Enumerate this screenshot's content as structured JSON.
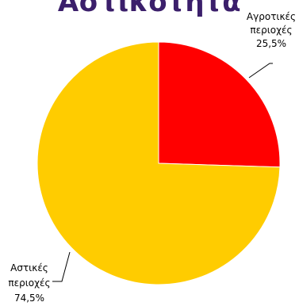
{
  "chart_data": {
    "type": "pie",
    "title": "Αστικότητα",
    "categories": [
      "Αγροτικές περιοχές",
      "Αστικές περιοχές"
    ],
    "values": [
      25.5,
      74.5
    ],
    "colors": [
      "#ff0000",
      "#ffcc00"
    ],
    "labels": [
      {
        "line1": "Αγροτικές",
        "line2": "περιοχές",
        "value": "25,5%"
      },
      {
        "line1": "Αστικές",
        "line2": "περιοχές",
        "value": "74,5%"
      }
    ],
    "legend": "none"
  }
}
